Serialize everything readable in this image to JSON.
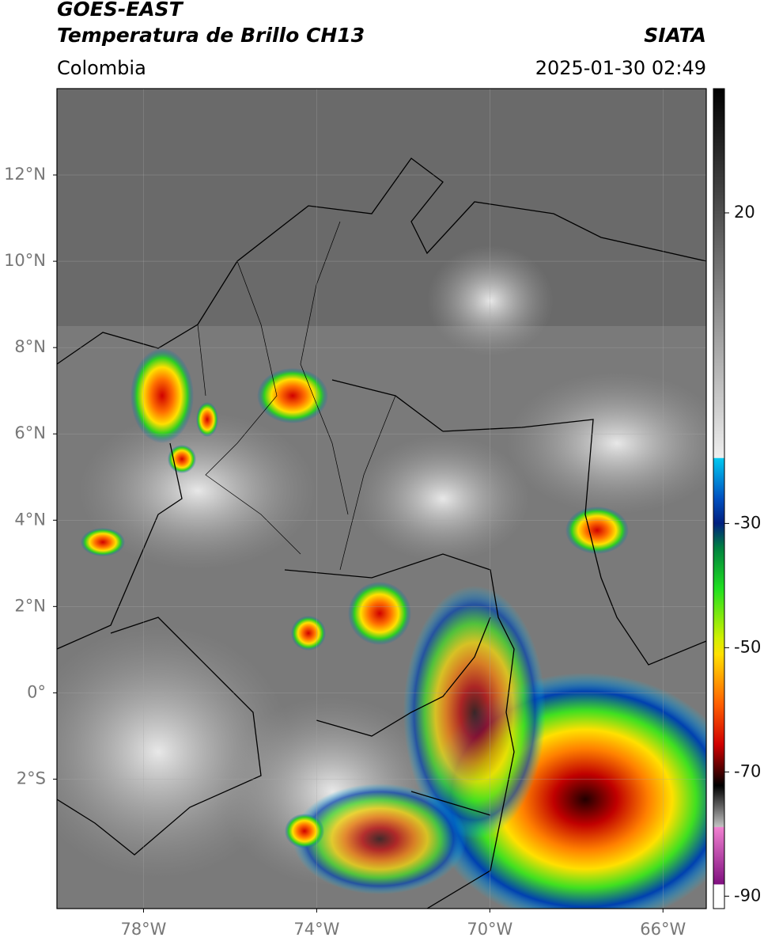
{
  "header": {
    "title": "GOES-EAST",
    "subtitle": "Temperatura de Brillo CH13",
    "source": "SIATA",
    "region": "Colombia",
    "datetime": "2025-01-30 02:49"
  },
  "map": {
    "lon_lim": [
      -80,
      -65
    ],
    "lat_lim": [
      -5,
      14
    ],
    "lat_ticks": [
      {
        "value": 12,
        "label": "12°N"
      },
      {
        "value": 10,
        "label": "10°N"
      },
      {
        "value": 8,
        "label": "8°N"
      },
      {
        "value": 6,
        "label": "6°N"
      },
      {
        "value": 4,
        "label": "4°N"
      },
      {
        "value": 2,
        "label": "2°N"
      },
      {
        "value": 0,
        "label": "0°"
      },
      {
        "value": -2,
        "label": "2°S"
      }
    ],
    "lon_ticks": [
      {
        "value": -78,
        "label": "78°W"
      },
      {
        "value": -74,
        "label": "74°W"
      },
      {
        "value": -70,
        "label": "70°W"
      },
      {
        "value": -66,
        "label": "66°W"
      }
    ]
  },
  "colorbar": {
    "lim": [
      -92,
      40
    ],
    "ticks": [
      20,
      -30,
      -50,
      -70,
      -90
    ]
  }
}
